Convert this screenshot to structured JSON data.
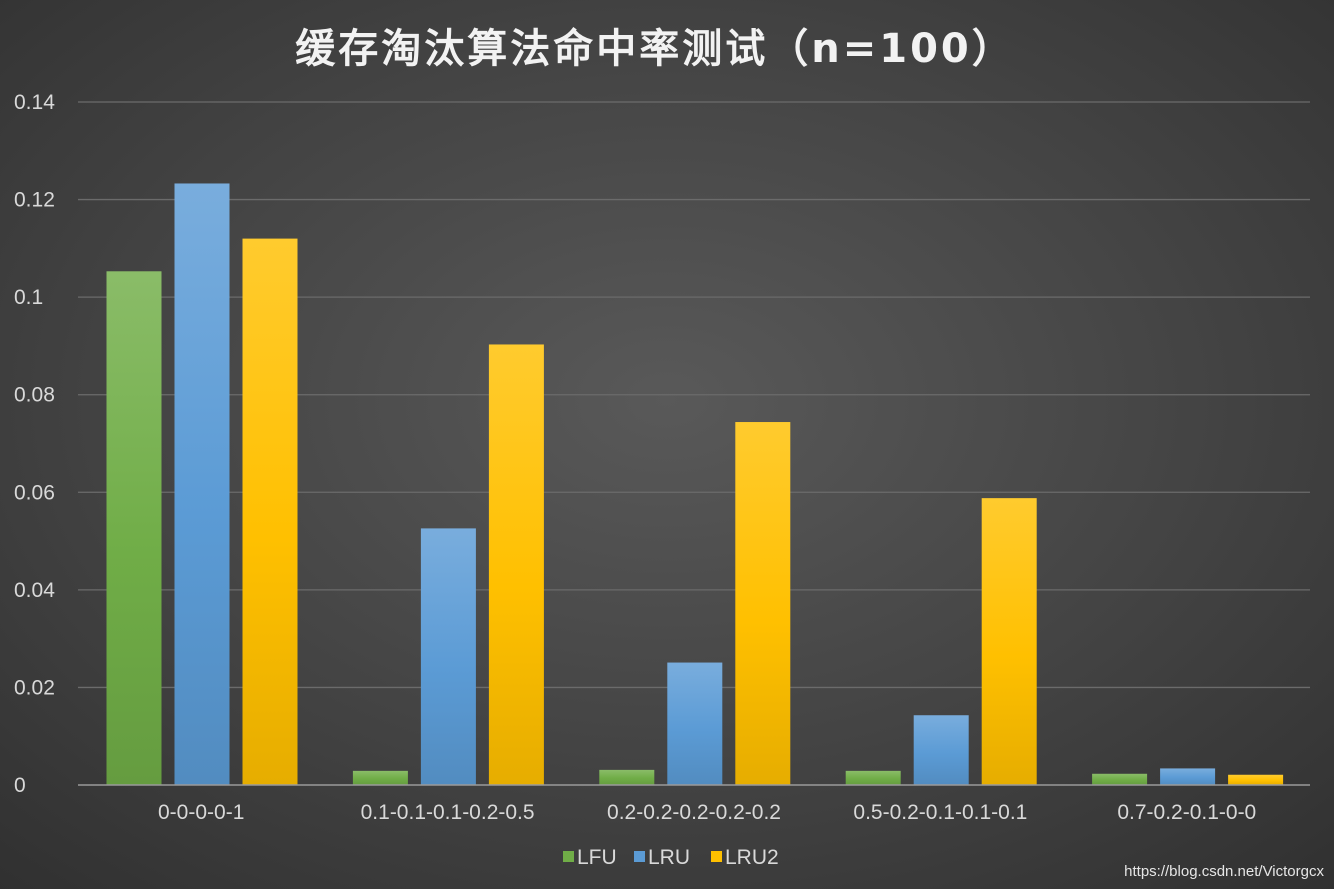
{
  "chart_data": {
    "type": "bar",
    "title": "缓存淘汰算法命中率测试（n=100）",
    "categories": [
      "0-0-0-0-1",
      "0.1-0.1-0.1-0.2-0.5",
      "0.2-0.2-0.2-0.2-0.2",
      "0.5-0.2-0.1-0.1-0.1",
      "0.7-0.2-0.1-0-0"
    ],
    "series": [
      {
        "name": "LFU",
        "color": "#70ad47",
        "values": [
          0.1053,
          0.0029,
          0.0031,
          0.0029,
          0.0023
        ]
      },
      {
        "name": "LRU",
        "color": "#5b9bd5",
        "values": [
          0.1233,
          0.0526,
          0.0251,
          0.0143,
          0.0034
        ]
      },
      {
        "name": "LRU2",
        "color": "#ffc000",
        "values": [
          0.112,
          0.0903,
          0.0744,
          0.0588,
          0.0021
        ]
      }
    ],
    "ylim": [
      0,
      0.14
    ],
    "yticks": [
      "0",
      "0.02",
      "0.04",
      "0.06",
      "0.08",
      "0.1",
      "0.12",
      "0.14"
    ],
    "xlabel": "",
    "ylabel": "",
    "grid": true,
    "legend_position": "bottom"
  },
  "watermark": "https://blog.csdn.net/Victorgcx"
}
